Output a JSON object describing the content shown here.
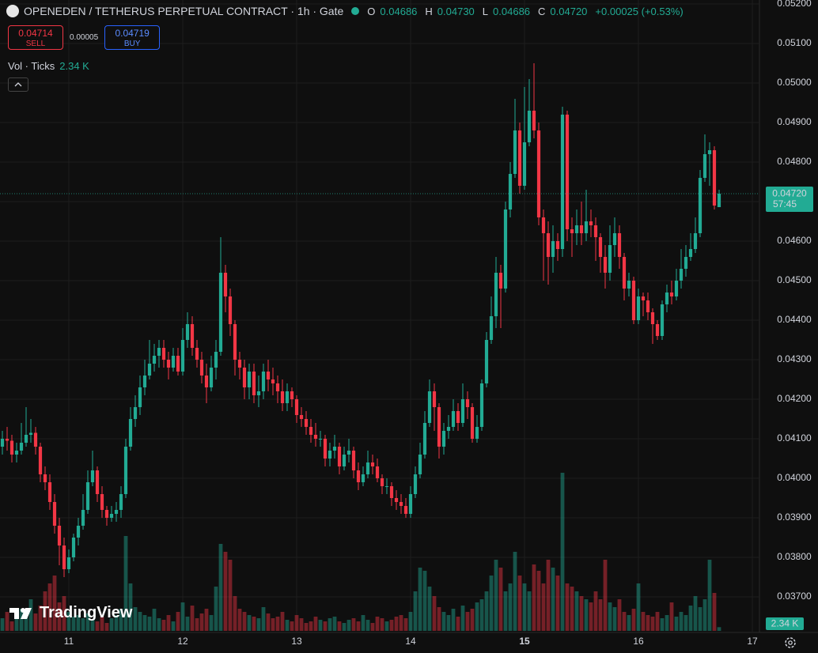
{
  "header": {
    "title": "OPENEDEN / TETHERUS PERPETUAL CONTRACT · 1h · Gate",
    "ohlc": [
      {
        "key": "O",
        "value": "0.04686"
      },
      {
        "key": "H",
        "value": "0.04730"
      },
      {
        "key": "L",
        "value": "0.04686"
      },
      {
        "key": "C",
        "value": "0.04720"
      }
    ],
    "change": "+0.00025 (+0.53%)"
  },
  "trade": {
    "sell_price": "0.04714",
    "sell": "SELL",
    "spread": "0.00005",
    "buy_price": "0.04719",
    "buy": "BUY"
  },
  "volume_legend": {
    "label": "Vol · Ticks",
    "value": "2.34 K"
  },
  "price_tag": {
    "price": "0.04720",
    "countdown": "57:45"
  },
  "volume_tag": "2.34 K",
  "brand": "TradingView",
  "chart_data": {
    "type": "candlestick",
    "up_color": "#22ab94",
    "down_color": "#f23645",
    "grid": true,
    "xlim": [
      -0.5,
      159.5
    ],
    "xticks": [
      {
        "value": 14,
        "label": "11"
      },
      {
        "value": 38,
        "label": "12"
      },
      {
        "value": 62,
        "label": "13"
      },
      {
        "value": 86,
        "label": "14"
      },
      {
        "value": 110,
        "label": "15"
      },
      {
        "value": 134,
        "label": "16"
      },
      {
        "value": 158,
        "label": "17"
      }
    ],
    "ylim": [
      0.0361,
      0.0521
    ],
    "yticks": [
      {
        "value": 0.052,
        "label": "0.05200"
      },
      {
        "value": 0.051,
        "label": "0.05100"
      },
      {
        "value": 0.05,
        "label": "0.05000"
      },
      {
        "value": 0.049,
        "label": "0.04900"
      },
      {
        "value": 0.048,
        "label": "0.04800"
      },
      {
        "value": 0.047,
        "label": "0.04700"
      },
      {
        "value": 0.046,
        "label": "0.04600"
      },
      {
        "value": 0.045,
        "label": "0.04500"
      },
      {
        "value": 0.044,
        "label": "0.04400"
      },
      {
        "value": 0.043,
        "label": "0.04300"
      },
      {
        "value": 0.042,
        "label": "0.04200"
      },
      {
        "value": 0.041,
        "label": "0.04100"
      },
      {
        "value": 0.04,
        "label": "0.04000"
      },
      {
        "value": 0.039,
        "label": "0.03900"
      },
      {
        "value": 0.038,
        "label": "0.03800"
      },
      {
        "value": 0.037,
        "label": "0.03700"
      }
    ],
    "open": [
      0.0408,
      0.041,
      0.04095,
      0.0406,
      0.0407,
      0.0409,
      0.0411,
      0.04115,
      0.0408,
      0.0401,
      0.0399,
      0.0394,
      0.0388,
      0.0383,
      0.0377,
      0.038,
      0.0385,
      0.0388,
      0.0392,
      0.0399,
      0.0402,
      0.0396,
      0.0392,
      0.039,
      0.0391,
      0.0392,
      0.0396,
      0.0408,
      0.0415,
      0.0418,
      0.0423,
      0.0426,
      0.0429,
      0.0431,
      0.0433,
      0.043,
      0.0428,
      0.0431,
      0.0427,
      0.0435,
      0.0439,
      0.0433,
      0.043,
      0.0426,
      0.0423,
      0.0428,
      0.0432,
      0.0452,
      0.0446,
      0.0439,
      0.043,
      0.0428,
      0.0423,
      0.0427,
      0.0421,
      0.0422,
      0.0427,
      0.0425,
      0.0424,
      0.0422,
      0.0419,
      0.0422,
      0.042,
      0.0416,
      0.0415,
      0.0413,
      0.0411,
      0.041,
      0.041,
      0.0405,
      0.0407,
      0.0408,
      0.0403,
      0.0406,
      0.0407,
      0.0402,
      0.0399,
      0.0401,
      0.0404,
      0.0403,
      0.04,
      0.0398,
      0.0398,
      0.0395,
      0.0394,
      0.0393,
      0.0391,
      0.0396,
      0.0401,
      0.0406,
      0.0414,
      0.0422,
      0.0418,
      0.0408,
      0.0412,
      0.0413,
      0.0417,
      0.0414,
      0.042,
      0.0418,
      0.041,
      0.0413,
      0.0424,
      0.0435,
      0.0441,
      0.0452,
      0.0448,
      0.0468,
      0.0477,
      0.0488,
      0.0474,
      0.0485,
      0.0493,
      0.0488,
      0.0466,
      0.0462,
      0.0456,
      0.046,
      0.0458,
      0.0492,
      0.0463,
      0.0462,
      0.0464,
      0.0462,
      0.0465,
      0.0464,
      0.0461,
      0.0456,
      0.0452,
      0.0459,
      0.0462,
      0.0456,
      0.0448,
      0.045,
      0.044,
      0.0446,
      0.0445,
      0.0442,
      0.0439,
      0.0436,
      0.0444,
      0.0447,
      0.0446,
      0.045,
      0.0453,
      0.0456,
      0.0458,
      0.0462,
      0.0476,
      0.0482,
      0.0483,
      0.04686
    ],
    "high": [
      0.0412,
      0.0413,
      0.0411,
      0.0409,
      0.0414,
      0.0418,
      0.0415,
      0.0413,
      0.0409,
      0.0403,
      0.0401,
      0.0396,
      0.039,
      0.0385,
      0.0382,
      0.0386,
      0.039,
      0.0396,
      0.0402,
      0.0407,
      0.0403,
      0.0398,
      0.0393,
      0.0393,
      0.0394,
      0.0398,
      0.041,
      0.0418,
      0.0421,
      0.0426,
      0.043,
      0.0435,
      0.0434,
      0.0435,
      0.0435,
      0.0432,
      0.0433,
      0.0433,
      0.0438,
      0.0442,
      0.0441,
      0.0435,
      0.0432,
      0.0429,
      0.0431,
      0.0435,
      0.0461,
      0.0454,
      0.0448,
      0.044,
      0.0432,
      0.043,
      0.0429,
      0.0429,
      0.0426,
      0.0429,
      0.043,
      0.0428,
      0.0426,
      0.0425,
      0.0424,
      0.0423,
      0.0421,
      0.0418,
      0.0417,
      0.0415,
      0.0414,
      0.0412,
      0.0411,
      0.0409,
      0.0411,
      0.0409,
      0.0408,
      0.041,
      0.0408,
      0.0404,
      0.0403,
      0.0407,
      0.0406,
      0.0405,
      0.0401,
      0.04,
      0.0399,
      0.0397,
      0.0396,
      0.0395,
      0.0398,
      0.0403,
      0.0409,
      0.0417,
      0.0425,
      0.0424,
      0.0419,
      0.0414,
      0.0416,
      0.042,
      0.0419,
      0.0424,
      0.0422,
      0.0419,
      0.0416,
      0.0425,
      0.0437,
      0.0446,
      0.0456,
      0.0454,
      0.047,
      0.048,
      0.0496,
      0.049,
      0.0499,
      0.0501,
      0.0505,
      0.049,
      0.0468,
      0.0465,
      0.0464,
      0.0462,
      0.0494,
      0.0493,
      0.0466,
      0.0468,
      0.047,
      0.0473,
      0.0468,
      0.0466,
      0.0462,
      0.0459,
      0.0464,
      0.0466,
      0.0464,
      0.0457,
      0.0452,
      0.0451,
      0.0448,
      0.0447,
      0.0447,
      0.0443,
      0.044,
      0.0445,
      0.0449,
      0.045,
      0.0453,
      0.0458,
      0.0459,
      0.0462,
      0.0466,
      0.0478,
      0.0487,
      0.0485,
      0.0484,
      0.0473
    ],
    "low": [
      0.0406,
      0.0407,
      0.0404,
      0.0404,
      0.0406,
      0.0408,
      0.0409,
      0.0406,
      0.0399,
      0.0397,
      0.0392,
      0.0386,
      0.0378,
      0.0375,
      0.0376,
      0.0379,
      0.0383,
      0.0387,
      0.0391,
      0.0398,
      0.0394,
      0.039,
      0.0388,
      0.0389,
      0.0389,
      0.039,
      0.0395,
      0.0407,
      0.0413,
      0.0416,
      0.0421,
      0.0425,
      0.0427,
      0.0428,
      0.0428,
      0.0425,
      0.0427,
      0.0426,
      0.0426,
      0.0433,
      0.0431,
      0.0428,
      0.0424,
      0.0419,
      0.0422,
      0.0425,
      0.0431,
      0.0442,
      0.0436,
      0.0426,
      0.0425,
      0.042,
      0.042,
      0.0419,
      0.0418,
      0.042,
      0.0422,
      0.0421,
      0.0419,
      0.0417,
      0.0417,
      0.0418,
      0.0414,
      0.0413,
      0.0411,
      0.0409,
      0.0408,
      0.0408,
      0.0403,
      0.0403,
      0.0405,
      0.0401,
      0.0402,
      0.0404,
      0.04,
      0.0397,
      0.0398,
      0.04,
      0.0401,
      0.0399,
      0.0396,
      0.0396,
      0.0393,
      0.0392,
      0.0391,
      0.039,
      0.039,
      0.0395,
      0.04,
      0.0405,
      0.0413,
      0.0412,
      0.0405,
      0.0406,
      0.041,
      0.0412,
      0.0412,
      0.0413,
      0.0415,
      0.0409,
      0.0409,
      0.0412,
      0.0423,
      0.0434,
      0.0438,
      0.0438,
      0.0447,
      0.0466,
      0.0476,
      0.0472,
      0.0473,
      0.0484,
      0.0486,
      0.0464,
      0.045,
      0.0449,
      0.0452,
      0.0455,
      0.0456,
      0.046,
      0.0456,
      0.0459,
      0.0459,
      0.046,
      0.0461,
      0.0455,
      0.0452,
      0.0448,
      0.045,
      0.0456,
      0.0453,
      0.0445,
      0.0446,
      0.0439,
      0.0439,
      0.0441,
      0.044,
      0.0434,
      0.0435,
      0.0435,
      0.0442,
      0.0444,
      0.0445,
      0.0448,
      0.0451,
      0.0455,
      0.0457,
      0.0461,
      0.0475,
      0.0474,
      0.0468,
      0.04686
    ],
    "close": [
      0.041,
      0.04095,
      0.0406,
      0.0407,
      0.0409,
      0.0411,
      0.04115,
      0.0408,
      0.0401,
      0.0399,
      0.0394,
      0.0388,
      0.0383,
      0.0377,
      0.038,
      0.0385,
      0.0388,
      0.0392,
      0.0399,
      0.0402,
      0.0396,
      0.0392,
      0.039,
      0.0391,
      0.0392,
      0.0396,
      0.0408,
      0.0415,
      0.0418,
      0.0423,
      0.0426,
      0.0429,
      0.0431,
      0.0433,
      0.043,
      0.0428,
      0.0431,
      0.0427,
      0.0435,
      0.0439,
      0.0433,
      0.043,
      0.0426,
      0.0423,
      0.0428,
      0.0432,
      0.0452,
      0.0446,
      0.0439,
      0.043,
      0.0428,
      0.0423,
      0.0427,
      0.0421,
      0.0422,
      0.0427,
      0.0425,
      0.0424,
      0.0422,
      0.0419,
      0.0422,
      0.042,
      0.0416,
      0.0415,
      0.0413,
      0.0411,
      0.041,
      0.041,
      0.0405,
      0.0407,
      0.0408,
      0.0403,
      0.0406,
      0.0407,
      0.0402,
      0.0399,
      0.0401,
      0.0404,
      0.0403,
      0.04,
      0.0398,
      0.0398,
      0.0395,
      0.0394,
      0.0393,
      0.0391,
      0.0396,
      0.0401,
      0.0406,
      0.0414,
      0.0422,
      0.0418,
      0.0408,
      0.0412,
      0.0413,
      0.0417,
      0.0414,
      0.042,
      0.0418,
      0.041,
      0.0413,
      0.0424,
      0.0435,
      0.0441,
      0.0452,
      0.0448,
      0.0468,
      0.0477,
      0.0488,
      0.0474,
      0.0485,
      0.0493,
      0.0488,
      0.0466,
      0.0462,
      0.0456,
      0.046,
      0.0458,
      0.0492,
      0.0463,
      0.0462,
      0.0464,
      0.0462,
      0.0465,
      0.0464,
      0.0461,
      0.0456,
      0.0452,
      0.0459,
      0.0462,
      0.0456,
      0.0448,
      0.045,
      0.044,
      0.0446,
      0.0445,
      0.0442,
      0.0439,
      0.0436,
      0.0444,
      0.0447,
      0.0446,
      0.045,
      0.0453,
      0.0456,
      0.0458,
      0.0462,
      0.0476,
      0.0482,
      0.0483,
      0.0469,
      0.0472
    ],
    "volume": [
      8,
      12,
      6,
      10,
      14,
      9,
      20,
      11,
      16,
      25,
      30,
      35,
      18,
      22,
      12,
      9,
      10,
      8,
      11,
      7,
      6,
      9,
      5,
      8,
      10,
      14,
      60,
      30,
      15,
      12,
      10,
      9,
      14,
      8,
      7,
      10,
      6,
      12,
      18,
      9,
      16,
      8,
      11,
      14,
      10,
      28,
      55,
      50,
      45,
      22,
      14,
      12,
      10,
      9,
      8,
      15,
      11,
      8,
      9,
      12,
      7,
      6,
      10,
      8,
      5,
      6,
      9,
      7,
      6,
      8,
      9,
      6,
      5,
      7,
      8,
      6,
      10,
      7,
      5,
      9,
      8,
      6,
      7,
      9,
      10,
      8,
      12,
      25,
      40,
      38,
      28,
      22,
      15,
      12,
      10,
      14,
      9,
      16,
      12,
      14,
      18,
      20,
      25,
      35,
      45,
      40,
      25,
      30,
      50,
      35,
      30,
      25,
      42,
      38,
      30,
      45,
      40,
      35,
      100,
      30,
      28,
      25,
      22,
      20,
      18,
      25,
      20,
      45,
      18,
      15,
      20,
      12,
      10,
      14,
      30,
      12,
      10,
      9,
      12,
      8,
      10,
      18,
      9,
      12,
      10,
      16,
      22,
      15,
      20,
      45,
      24,
      2.34
    ]
  }
}
